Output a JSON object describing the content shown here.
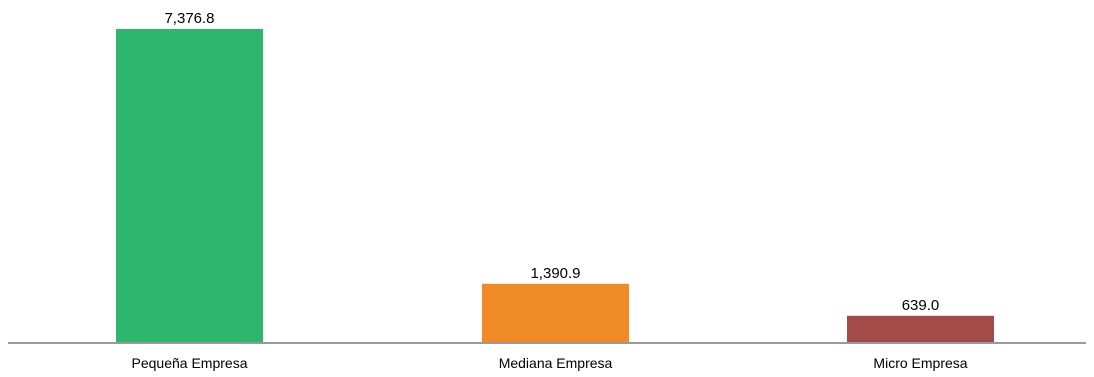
{
  "chart_data": {
    "type": "bar",
    "categories": [
      "Pequeña Empresa",
      "Mediana Empresa",
      "Micro Empresa"
    ],
    "values": [
      7376.8,
      1390.9,
      639.0
    ],
    "value_labels": [
      "7,376.8",
      "1,390.9",
      "639.0"
    ],
    "colors": [
      "#2eb56e",
      "#ef8a24",
      "#a34b48"
    ],
    "axis_color": "#9a9a9a",
    "title": "",
    "xlabel": "",
    "ylabel": "",
    "ylim": [
      0,
      7376.8
    ],
    "grid": false,
    "legend": "none"
  }
}
